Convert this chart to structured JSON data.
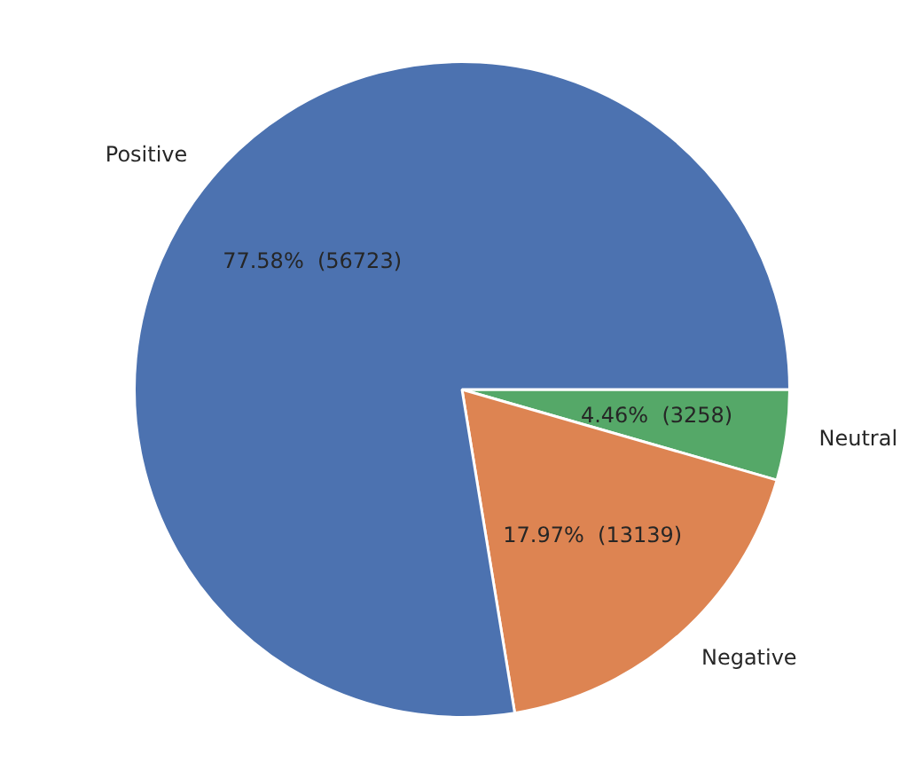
{
  "chart_data": {
    "type": "pie",
    "categories": [
      "Neutral",
      "Negative",
      "Positive"
    ],
    "values": [
      3258,
      13139,
      56723
    ],
    "colors": [
      "#55a868",
      "#dd8452",
      "#4c72b0"
    ],
    "value_labels": [
      "4.46%  (3258)",
      "17.97%  (13139)",
      "77.58%  (56723)"
    ],
    "legend": false
  }
}
